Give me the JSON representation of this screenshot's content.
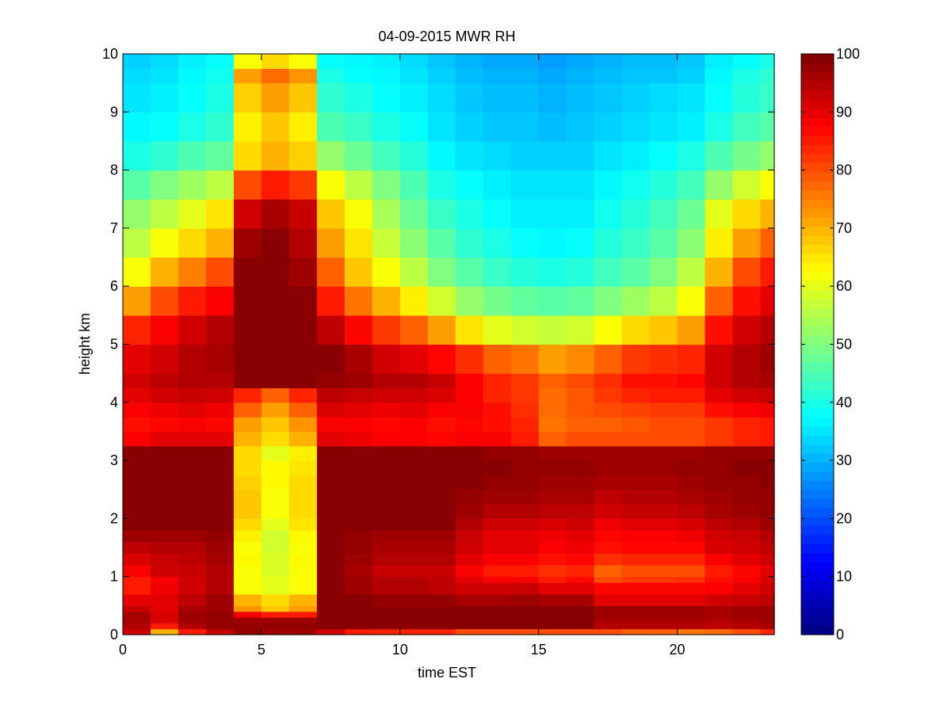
{
  "chart_data": {
    "type": "heatmap",
    "title": "04-09-2015 MWR RH",
    "xlabel": "time EST",
    "ylabel": "height km",
    "xlim": [
      0,
      23.5
    ],
    "ylim": [
      0,
      10
    ],
    "xticks": [
      0,
      5,
      10,
      15,
      20
    ],
    "yticks": [
      0,
      1,
      2,
      3,
      4,
      5,
      6,
      7,
      8,
      9,
      10
    ],
    "colorbar": {
      "min": 0,
      "max": 100,
      "ticks": [
        0,
        10,
        20,
        30,
        40,
        50,
        60,
        70,
        80,
        90,
        100
      ],
      "colormap": "jet"
    },
    "cell_width_hours": 1,
    "x_times": [
      0,
      1,
      2,
      3,
      4,
      5,
      6,
      7,
      8,
      9,
      10,
      11,
      12,
      13,
      14,
      15,
      16,
      17,
      18,
      19,
      20,
      21,
      22,
      23
    ],
    "y_heights": [
      0,
      0.1,
      0.2,
      0.3,
      0.4,
      0.5,
      0.7,
      0.9,
      1.0,
      1.2,
      1.4,
      1.6,
      1.8,
      2.0,
      2.25,
      2.5,
      2.75,
      3.0,
      3.25,
      3.5,
      3.75,
      4.0,
      4.25,
      4.5,
      5.0,
      5.5,
      6.0,
      6.5,
      7.0,
      7.5,
      8.0,
      8.5,
      9.0,
      9.5,
      9.75
    ],
    "values": [
      [
        93,
        70,
        85,
        93,
        98,
        97,
        97,
        92,
        85,
        84,
        84,
        84,
        80,
        80,
        80,
        80,
        80,
        80,
        78,
        78,
        76,
        77,
        80,
        84
      ],
      [
        95,
        85,
        95,
        98,
        98,
        98,
        98,
        99,
        99,
        99,
        99,
        99,
        99,
        99,
        99,
        99,
        99,
        95,
        95,
        95,
        95,
        94,
        95,
        96
      ],
      [
        96,
        91,
        97,
        98,
        97,
        97,
        97,
        99,
        99,
        99,
        99,
        99,
        99,
        99,
        99,
        99,
        99,
        96,
        96,
        96,
        96,
        95,
        96,
        97
      ],
      [
        96,
        91,
        97,
        98,
        89,
        85,
        85,
        99,
        99,
        99,
        99,
        99,
        99,
        99,
        99,
        99,
        99,
        97,
        97,
        97,
        97,
        96,
        97,
        97
      ],
      [
        93,
        90,
        96,
        97,
        73,
        68,
        72,
        99,
        99,
        99,
        99,
        99,
        99,
        99,
        99,
        99,
        99,
        97,
        97,
        97,
        97,
        96,
        97,
        97
      ],
      [
        90,
        90,
        94,
        97,
        70,
        66,
        70,
        99,
        99,
        98,
        98,
        98,
        96,
        96,
        97,
        96,
        96,
        90,
        90,
        90,
        90,
        92,
        93,
        94
      ],
      [
        85,
        89,
        92,
        95,
        62,
        60,
        62,
        99,
        97,
        95,
        95,
        94,
        92,
        92,
        93,
        90,
        90,
        87,
        87,
        87,
        87,
        88,
        90,
        92
      ],
      [
        85,
        88,
        92,
        95,
        62,
        60,
        62,
        99,
        97,
        95,
        95,
        94,
        90,
        88,
        88,
        85,
        87,
        80,
        82,
        82,
        83,
        86,
        88,
        91
      ],
      [
        88,
        92,
        93,
        95,
        62,
        59,
        62,
        99,
        96,
        93,
        93,
        93,
        88,
        85,
        85,
        83,
        84,
        78,
        80,
        80,
        80,
        85,
        87,
        90
      ],
      [
        91,
        93,
        94,
        96,
        63,
        59,
        63,
        99,
        97,
        95,
        95,
        95,
        90,
        88,
        88,
        86,
        87,
        83,
        84,
        84,
        84,
        88,
        90,
        92
      ],
      [
        94,
        95,
        95,
        97,
        62,
        58,
        62,
        99,
        98,
        96,
        96,
        96,
        92,
        90,
        90,
        88,
        89,
        86,
        87,
        87,
        87,
        91,
        92,
        94
      ],
      [
        97,
        97,
        97,
        98,
        64,
        58,
        63,
        99,
        98,
        97,
        97,
        97,
        93,
        90,
        90,
        89,
        90,
        87,
        88,
        88,
        89,
        92,
        93,
        95
      ],
      [
        99,
        99,
        99,
        99,
        66,
        60,
        65,
        99,
        99,
        99,
        99,
        99,
        95,
        92,
        92,
        91,
        92,
        89,
        90,
        90,
        91,
        94,
        95,
        97
      ],
      [
        99,
        99,
        99,
        99,
        68,
        62,
        66,
        99,
        99,
        99,
        99,
        99,
        97,
        95,
        95,
        94,
        94,
        92,
        93,
        93,
        94,
        96,
        97,
        98
      ],
      [
        99,
        99,
        99,
        99,
        68,
        62,
        66,
        99,
        99,
        99,
        99,
        99,
        98,
        97,
        97,
        96,
        96,
        94,
        95,
        95,
        96,
        97,
        98,
        98
      ],
      [
        99,
        99,
        99,
        99,
        67,
        63,
        66,
        99,
        99,
        99,
        99,
        99,
        99,
        98,
        98,
        97,
        97,
        96,
        96,
        96,
        97,
        98,
        98,
        99
      ],
      [
        99,
        99,
        99,
        99,
        66,
        63,
        65,
        99,
        99,
        99,
        99,
        99,
        99,
        99,
        98,
        98,
        98,
        97,
        97,
        97,
        98,
        98,
        99,
        99
      ],
      [
        99,
        99,
        99,
        99,
        66,
        60,
        64,
        99,
        99,
        99,
        99,
        99,
        99,
        98,
        98,
        97,
        97,
        97,
        97,
        97,
        97,
        98,
        98,
        98
      ],
      [
        88,
        90,
        90,
        90,
        70,
        66,
        70,
        90,
        89,
        88,
        88,
        87,
        88,
        88,
        85,
        78,
        80,
        80,
        80,
        80,
        80,
        82,
        84,
        85
      ],
      [
        86,
        87,
        88,
        87,
        72,
        68,
        73,
        88,
        88,
        87,
        88,
        86,
        87,
        86,
        84,
        76,
        78,
        78,
        79,
        80,
        80,
        82,
        84,
        85
      ],
      [
        88,
        89,
        90,
        89,
        78,
        72,
        78,
        91,
        90,
        89,
        90,
        88,
        88,
        86,
        83,
        77,
        79,
        80,
        81,
        82,
        82,
        86,
        88,
        89
      ],
      [
        90,
        92,
        93,
        92,
        84,
        78,
        84,
        94,
        93,
        92,
        92,
        91,
        88,
        84,
        82,
        77,
        79,
        82,
        84,
        85,
        85,
        90,
        92,
        93
      ],
      [
        92,
        94,
        95,
        95,
        99,
        99,
        99,
        98,
        97,
        95,
        95,
        93,
        88,
        84,
        82,
        78,
        80,
        83,
        86,
        86,
        87,
        92,
        95,
        96
      ],
      [
        90,
        92,
        95,
        96,
        99,
        99,
        99,
        99,
        96,
        92,
        90,
        87,
        83,
        78,
        76,
        72,
        74,
        78,
        82,
        83,
        84,
        92,
        95,
        97
      ],
      [
        84,
        88,
        92,
        95,
        99,
        99,
        99,
        94,
        87,
        82,
        78,
        72,
        65,
        60,
        58,
        57,
        58,
        62,
        66,
        68,
        72,
        86,
        92,
        95
      ],
      [
        72,
        80,
        85,
        88,
        99,
        99,
        99,
        85,
        76,
        70,
        64,
        58,
        52,
        49,
        47,
        46,
        47,
        50,
        53,
        56,
        62,
        78,
        86,
        90
      ],
      [
        62,
        70,
        75,
        80,
        99,
        99,
        97,
        78,
        68,
        62,
        56,
        50,
        46,
        43,
        41,
        40,
        41,
        44,
        46,
        50,
        56,
        70,
        80,
        85
      ],
      [
        56,
        62,
        66,
        70,
        97,
        99,
        95,
        72,
        65,
        57,
        51,
        46,
        42,
        40,
        38,
        37,
        38,
        41,
        43,
        46,
        51,
        64,
        72,
        78
      ],
      [
        52,
        56,
        60,
        65,
        92,
        96,
        93,
        68,
        62,
        54,
        48,
        43,
        40,
        38,
        36,
        36,
        36,
        39,
        41,
        44,
        48,
        60,
        66,
        70
      ],
      [
        46,
        50,
        53,
        56,
        80,
        85,
        82,
        62,
        56,
        50,
        45,
        40,
        38,
        36,
        35,
        35,
        35,
        37,
        39,
        41,
        44,
        52,
        58,
        62
      ],
      [
        40,
        42,
        45,
        47,
        66,
        70,
        67,
        52,
        48,
        44,
        41,
        37,
        35,
        34,
        33,
        33,
        33,
        35,
        36,
        38,
        40,
        45,
        49,
        52
      ],
      [
        37,
        38,
        40,
        42,
        64,
        68,
        64,
        45,
        43,
        40,
        38,
        35,
        33,
        32,
        32,
        31,
        32,
        33,
        34,
        35,
        36,
        40,
        44,
        46
      ],
      [
        35,
        36,
        38,
        40,
        67,
        72,
        68,
        42,
        40,
        38,
        36,
        34,
        32,
        31,
        31,
        30,
        31,
        32,
        33,
        34,
        35,
        38,
        41,
        43
      ],
      [
        34,
        35,
        37,
        39,
        72,
        77,
        73,
        40,
        38,
        37,
        35,
        33,
        31,
        30,
        30,
        29,
        30,
        31,
        32,
        32,
        33,
        37,
        40,
        42
      ],
      [
        33,
        34,
        36,
        38,
        62,
        66,
        62,
        38,
        37,
        36,
        34,
        32,
        30,
        29,
        29,
        28,
        29,
        30,
        31,
        31,
        32,
        36,
        38,
        40
      ]
    ]
  }
}
